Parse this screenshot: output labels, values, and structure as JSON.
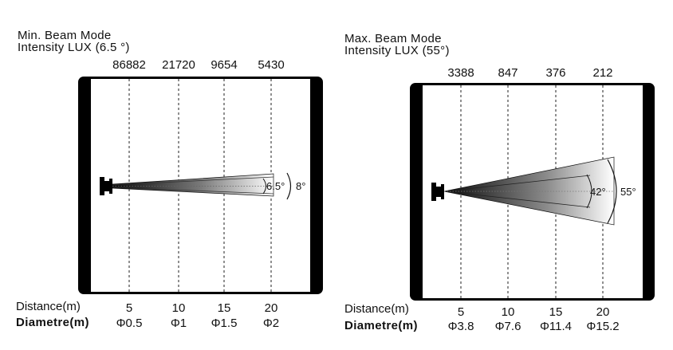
{
  "diagrams": [
    {
      "title_line1": "Min. Beam Mode",
      "title_line2": "Intensity LUX (6.5 °)",
      "lux": [
        "86882",
        "21720",
        "9654",
        "5430"
      ],
      "distance_label": "Distance(m)",
      "distances": [
        "5",
        "10",
        "15",
        "20"
      ],
      "diameter_label": "Diametre(m)",
      "diameters": [
        "Φ0.5",
        "Φ1",
        "Φ1.5",
        "Φ2"
      ],
      "inner_angle": "6.5°",
      "outer_angle": "8°"
    },
    {
      "title_line1": "Max. Beam Mode",
      "title_line2": "Intensity LUX (55°)",
      "lux": [
        "3388",
        "847",
        "376",
        "212"
      ],
      "distance_label": "Distance(m)",
      "distances": [
        "5",
        "10",
        "15",
        "20"
      ],
      "diameter_label": "Diametre(m)",
      "diameters": [
        "Φ3.8",
        "Φ7.6",
        "Φ11.4",
        "Φ15.2"
      ],
      "inner_angle": "42°",
      "outer_angle": "55°"
    }
  ]
}
